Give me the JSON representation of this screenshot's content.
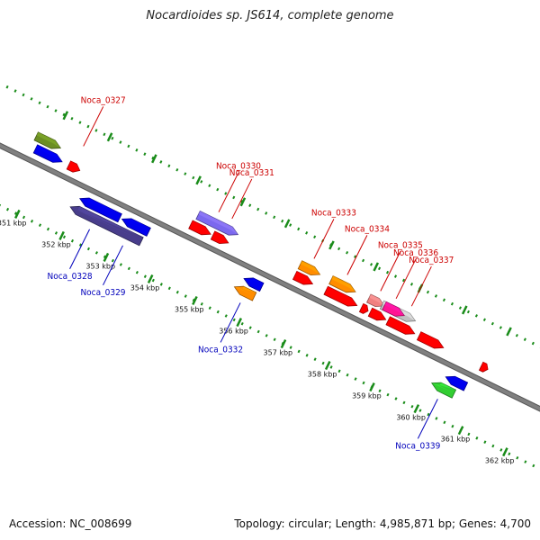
{
  "title": "Nocardioides sp. JS614, complete genome",
  "footer": {
    "accession": "Accession: NC_008699",
    "summary": "Topology: circular; Length: 4,985,871 bp; Genes: 4,700"
  },
  "colors": {
    "backbone": "#808080",
    "tick": "#1a8c1a",
    "forward_label": "#cc0000",
    "reverse_label": "#0000bb"
  },
  "scale": {
    "unit": "kbp",
    "major_ticks": [
      351,
      352,
      353,
      354,
      355,
      356,
      357,
      358,
      359,
      360,
      361,
      362
    ],
    "major_labels": [
      "351 kbp",
      "352 kbp",
      "353 kbp",
      "354 kbp",
      "355 kbp",
      "356 kbp",
      "357 kbp",
      "358 kbp",
      "359 kbp",
      "360 kbp",
      "361 kbp",
      "362 kbp"
    ]
  },
  "genes": [
    {
      "strand": "+",
      "lane": 1,
      "start": 350.75,
      "end": 351.35,
      "color": "#0000ee"
    },
    {
      "strand": "+",
      "lane": 2,
      "start": 350.65,
      "end": 351.2,
      "color": "#6b8e23"
    },
    {
      "strand": "+",
      "lane": 1,
      "start": 351.5,
      "end": 351.75,
      "color": "#ff0000"
    },
    {
      "strand": "-",
      "lane": 1,
      "start": 352.0,
      "end": 352.9,
      "color": "#0000ee"
    },
    {
      "strand": "-",
      "lane": 2,
      "start": 351.9,
      "end": 353.5,
      "color": "#483d8b"
    },
    {
      "strand": "-",
      "lane": 1,
      "start": 352.95,
      "end": 353.55,
      "color": "#0000ee"
    },
    {
      "strand": "+",
      "lane": 2,
      "start": 354.3,
      "end": 355.2,
      "color": "#7b68ee"
    },
    {
      "strand": "+",
      "lane": 1,
      "start": 354.25,
      "end": 354.7,
      "color": "#ff0000"
    },
    {
      "strand": "+",
      "lane": 1,
      "start": 354.75,
      "end": 355.1,
      "color": "#ff0000"
    },
    {
      "strand": "-",
      "lane": 1,
      "start": 355.7,
      "end": 356.1,
      "color": "#0000ee"
    },
    {
      "strand": "-",
      "lane": 2,
      "start": 355.6,
      "end": 356.05,
      "color": "#ff8c00"
    },
    {
      "strand": "+",
      "lane": 2,
      "start": 356.6,
      "end": 357.05,
      "color": "#ff8c00"
    },
    {
      "strand": "+",
      "lane": 1,
      "start": 356.6,
      "end": 357.0,
      "color": "#ff0000"
    },
    {
      "strand": "+",
      "lane": 2,
      "start": 357.3,
      "end": 357.85,
      "color": "#ff8c00"
    },
    {
      "strand": "+",
      "lane": 1,
      "start": 357.3,
      "end": 358.0,
      "color": "#ff0000"
    },
    {
      "strand": "+",
      "lane": 1,
      "start": 358.1,
      "end": 358.25,
      "color": "#ff0000"
    },
    {
      "strand": "+",
      "lane": 2,
      "start": 358.15,
      "end": 358.5,
      "color": "#f08080"
    },
    {
      "strand": "+",
      "lane": 1,
      "start": 358.3,
      "end": 358.65,
      "color": "#ff0000"
    },
    {
      "strand": "+",
      "lane": 2,
      "start": 358.45,
      "end": 359.2,
      "color": "#c0c0c0"
    },
    {
      "strand": "+",
      "lane": 2,
      "start": 358.5,
      "end": 358.95,
      "color": "#ff1493"
    },
    {
      "strand": "+",
      "lane": 1,
      "start": 358.7,
      "end": 359.3,
      "color": "#ff0000"
    },
    {
      "strand": "+",
      "lane": 1,
      "start": 359.4,
      "end": 359.95,
      "color": "#ff0000"
    },
    {
      "strand": "+",
      "lane": 1,
      "start": 360.8,
      "end": 360.95,
      "color": "#ff0000"
    },
    {
      "strand": "-",
      "lane": 1,
      "start": 360.25,
      "end": 360.7,
      "color": "#0000ee"
    },
    {
      "strand": "-",
      "lane": 2,
      "start": 360.05,
      "end": 360.55,
      "color": "#32cd32"
    }
  ],
  "labels": [
    {
      "text": "Noca_0327",
      "strand": "+",
      "pos": 351.6
    },
    {
      "text": "Noca_0330",
      "strand": "+",
      "pos": 354.65
    },
    {
      "text": "Noca_0331",
      "strand": "+",
      "pos": 354.95
    },
    {
      "text": "Noca_0333",
      "strand": "+",
      "pos": 356.8
    },
    {
      "text": "Noca_0334",
      "strand": "+",
      "pos": 357.55
    },
    {
      "text": "Noca_0335",
      "strand": "+",
      "pos": 358.3
    },
    {
      "text": "Noca_0336",
      "strand": "+",
      "pos": 358.65
    },
    {
      "text": "Noca_0337",
      "strand": "+",
      "pos": 359.0
    },
    {
      "text": "Noca_0328",
      "strand": "-",
      "pos": 352.45
    },
    {
      "text": "Noca_0329",
      "strand": "-",
      "pos": 353.2
    },
    {
      "text": "Noca_0332",
      "strand": "-",
      "pos": 355.85
    },
    {
      "text": "Noca_0339",
      "strand": "-",
      "pos": 360.3
    }
  ]
}
